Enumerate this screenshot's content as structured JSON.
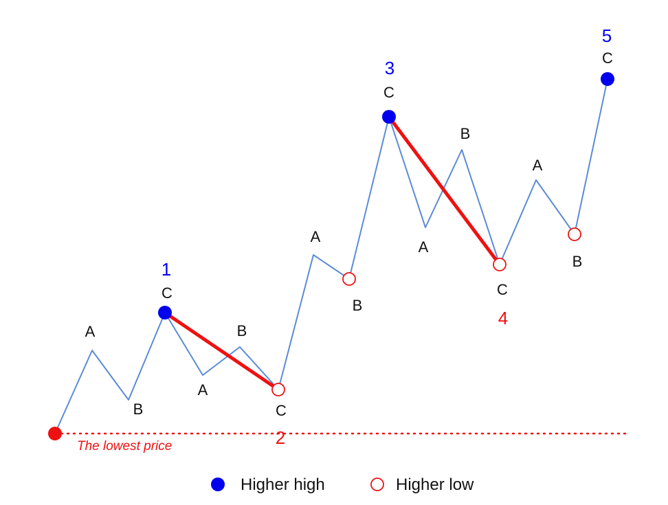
{
  "colors": {
    "path": "#5B8BD6",
    "high": "#0000EE",
    "low": "#EE1111",
    "text": "#111111"
  },
  "annotation": {
    "lowest_price": "The lowest price"
  },
  "legend": {
    "higher_high": "Higher high",
    "higher_low": "Higher low"
  },
  "wave_numbers": [
    "1",
    "2",
    "3",
    "4",
    "5"
  ],
  "point_labels": [
    "A",
    "B",
    "C",
    "A",
    "B",
    "C",
    "A",
    "B",
    "C",
    "A",
    "B",
    "C",
    "A",
    "B",
    "C"
  ],
  "icons": {
    "higher_high_marker": "filled-blue-circle-icon",
    "higher_low_marker": "hollow-red-circle-icon",
    "lowest_price_marker": "filled-red-circle-icon"
  }
}
